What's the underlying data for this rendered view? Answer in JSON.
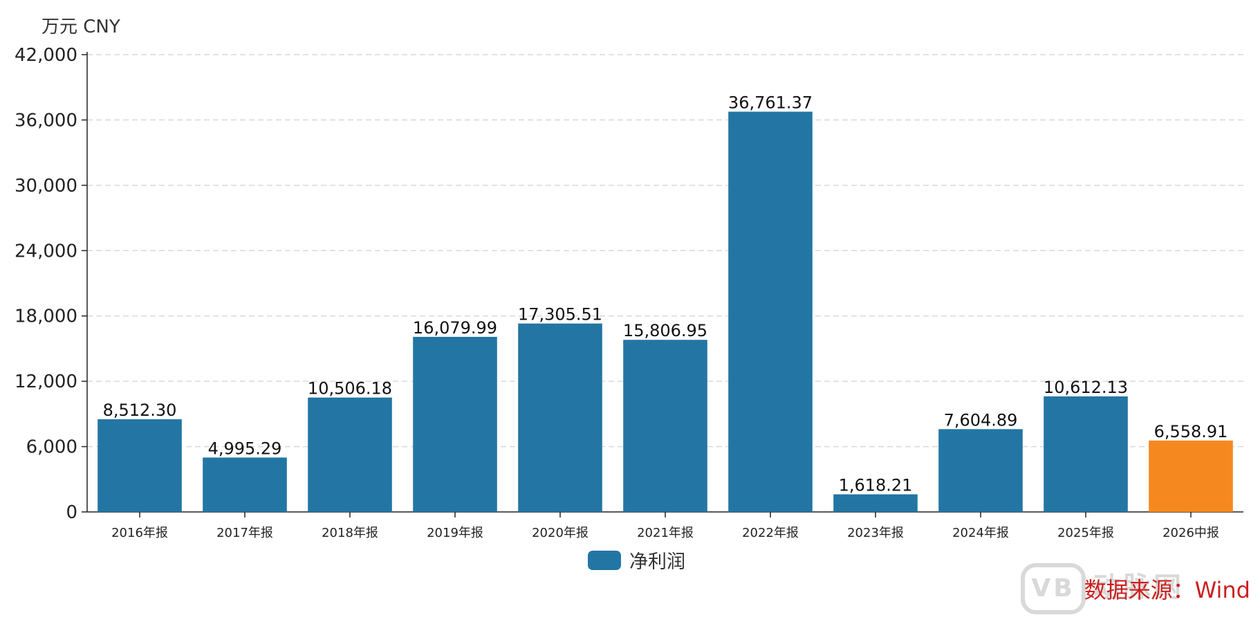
{
  "unit_label": "万元  CNY",
  "legend": {
    "label": "净利润",
    "color": "#2376a3"
  },
  "watermark": {
    "badge": "VB",
    "text": "动脉网"
  },
  "source_note": "数据来源：Wind",
  "colors": {
    "bar": "#2376a3",
    "highlight": "#f5891f",
    "grid": "#d9d9d9",
    "axis": "#222222"
  },
  "chart_data": {
    "type": "bar",
    "categories": [
      "2016年报",
      "2017年报",
      "2018年报",
      "2019年报",
      "2020年报",
      "2021年报",
      "2022年报",
      "2023年报",
      "2024年报",
      "2025年报",
      "2026中报"
    ],
    "series": [
      {
        "name": "净利润",
        "values": [
          8512.3,
          4995.29,
          10506.18,
          16079.99,
          17305.51,
          15806.95,
          36761.37,
          1618.21,
          7604.89,
          10612.13,
          6558.91
        ],
        "labels": [
          "8,512.30",
          "4,995.29",
          "10,506.18",
          "16,079.99",
          "17,305.51",
          "15,806.95",
          "36,761.37",
          "1,618.21",
          "7,604.89",
          "10,612.13",
          "6,558.91"
        ]
      }
    ],
    "highlight_index": 10,
    "yticks": [
      0,
      6000,
      12000,
      18000,
      24000,
      30000,
      36000,
      42000
    ],
    "ytick_labels": [
      "0",
      "6,000",
      "12,000",
      "18,000",
      "24,000",
      "30,000",
      "36,000",
      "42,000"
    ],
    "ylim": [
      0,
      42000
    ],
    "grid": true,
    "legend_position": "bottom-center"
  }
}
